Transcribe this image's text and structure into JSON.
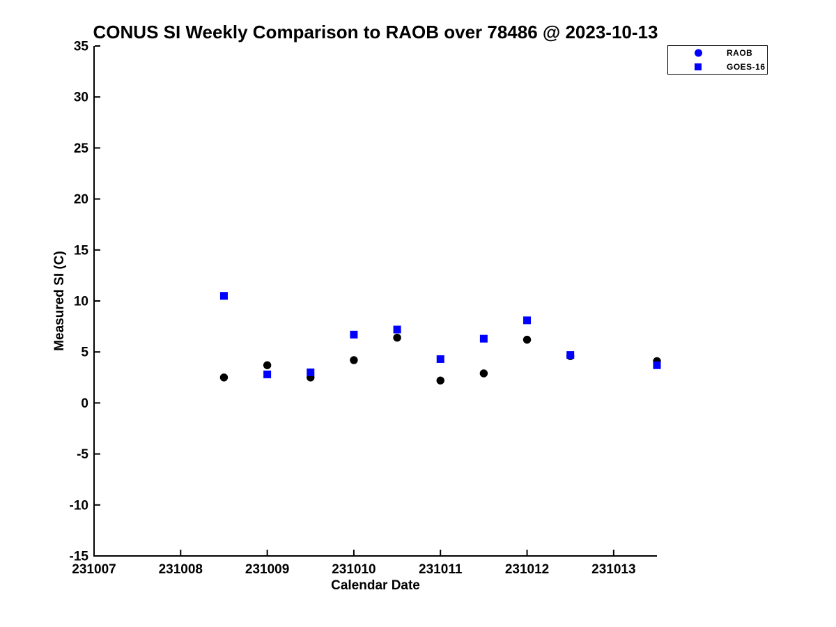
{
  "page": {
    "background": "#ffffff"
  },
  "chart_data": {
    "type": "scatter",
    "title": "CONUS SI Weekly Comparison to RAOB over 78486 @ 2023-10-13",
    "xlabel": "Calendar Date",
    "ylabel": "Measured SI (C)",
    "xlim": [
      231007,
      231013.5
    ],
    "ylim": [
      -15,
      35
    ],
    "xticks": [
      231007,
      231008,
      231009,
      231010,
      231011,
      231012,
      231013
    ],
    "yticks": [
      35,
      30,
      25,
      20,
      15,
      10,
      5,
      0,
      -5,
      -10,
      -15
    ],
    "grid": false,
    "axis_color": "#000000",
    "legend": {
      "position": "top-right",
      "border_color": "#000000",
      "background": "#ffffff"
    },
    "x": [
      231008.5,
      231009.0,
      231009.5,
      231010.0,
      231010.5,
      231011.0,
      231011.5,
      231012.0,
      231012.5,
      231013.5
    ],
    "series": [
      {
        "name": "RAOB",
        "marker": "circle",
        "point_color": "#000000",
        "legend_color": "#0000ff",
        "values": [
          2.5,
          3.7,
          2.5,
          4.2,
          6.4,
          2.2,
          2.9,
          6.2,
          4.6,
          4.1
        ]
      },
      {
        "name": "GOES-16",
        "marker": "square",
        "point_color": "#0000ff",
        "legend_color": "#0000ff",
        "values": [
          10.5,
          2.8,
          3.0,
          6.7,
          7.2,
          4.3,
          6.3,
          8.1,
          4.7,
          3.7
        ]
      }
    ]
  }
}
